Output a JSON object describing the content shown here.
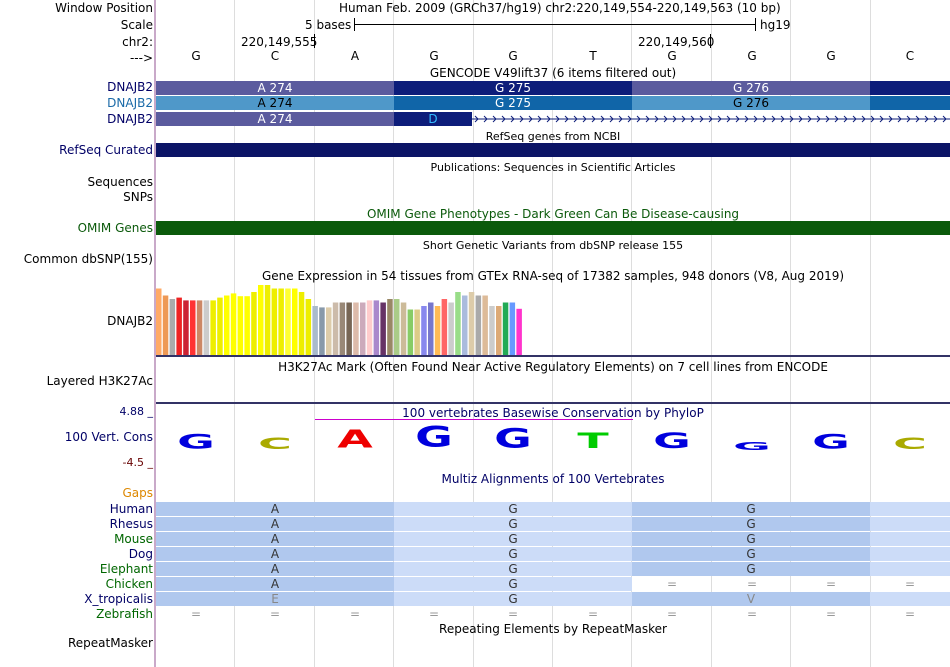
{
  "labels": {
    "window_position": "Window Position",
    "scale": "Scale",
    "chr": "chr2:",
    "strand": "--->",
    "dnajb2_1": "DNAJB2",
    "dnajb2_2": "DNAJB2",
    "dnajb2_3": "DNAJB2",
    "refseq": "RefSeq Curated",
    "sequences": "Sequences",
    "snps": "SNPs",
    "omim": "OMIM Genes",
    "common_dbsnp": "Common dbSNP(155)",
    "gtex_gene": "DNAJB2",
    "h3k27ac": "Layered H3K27Ac",
    "cons_max": "4.88 _",
    "cons_label": "100 Vert. Cons",
    "cons_min": "-4.5 _",
    "gaps": "Gaps",
    "repeatmasker": "RepeatMasker"
  },
  "header": {
    "window_position": "Human Feb. 2009 (GRCh37/hg19)   chr2:220,149,554-220,149,563 (10 bp)",
    "scale_text": "5 bases",
    "assembly": "hg19",
    "pos1": "220,149,555",
    "pos2": "220,149,560"
  },
  "bases": [
    "G",
    "C",
    "A",
    "G",
    "G",
    "T",
    "G",
    "G",
    "G",
    "C"
  ],
  "tracks": {
    "gencode_title": "GENCODE V49lift37 (6 items filtered out)",
    "row1": [
      "A 274",
      "G 275",
      "G 276"
    ],
    "row2": [
      "A 274",
      "G 275",
      "G 276"
    ],
    "row3": [
      "A 274",
      "D"
    ],
    "refseq_title": "RefSeq genes from NCBI",
    "publications_title": "Publications: Sequences in Scientific Articles",
    "omim_title": "OMIM Gene Phenotypes - Dark Green Can Be Disease-causing",
    "dbsnp_title": "Short Genetic Variants from dbSNP release 155",
    "gtex_title": "Gene Expression in 54 tissues from GTEx RNA-seq of 17382 samples, 948 donors (V8, Aug 2019)",
    "h3k27ac_title": "H3K27Ac Mark (Often Found Near Active Regulatory Elements) on 7 cell lines from ENCODE",
    "cons_title": "100 vertebrates Basewise Conservation by PhyloP",
    "multiz_title": "Multiz Alignments of 100 Vertebrates",
    "repeat_title": "Repeating Elements by RepeatMasker"
  },
  "gtex_levels": [
    0.95,
    0.85,
    0.8,
    0.82,
    0.78,
    0.78,
    0.78,
    0.78,
    0.78,
    0.82,
    0.85,
    0.88,
    0.84,
    0.84,
    0.9,
    1.0,
    1.0,
    0.95,
    0.95,
    0.95,
    0.95,
    0.9,
    0.8,
    0.7,
    0.68,
    0.68,
    0.75,
    0.75,
    0.75,
    0.75,
    0.75,
    0.78,
    0.78,
    0.75,
    0.8,
    0.8,
    0.75,
    0.65,
    0.65,
    0.7,
    0.75,
    0.7,
    0.8,
    0.75,
    0.9,
    0.85,
    0.9,
    0.85,
    0.85,
    0.7,
    0.7,
    0.75,
    0.75,
    0.66
  ],
  "gtex_colors": [
    "#ffaa66",
    "#ee9955",
    "#aaaaaa",
    "#ee2222",
    "#cc2233",
    "#ff3333",
    "#cc8866",
    "#cccccc",
    "#eeee00",
    "#eeee00",
    "#ffff00",
    "#ffff00",
    "#ffff00",
    "#ffff00",
    "#eeee00",
    "#ffff00",
    "#eeee00",
    "#eeee00",
    "#eeee00",
    "#ffff33",
    "#ffff00",
    "#eeee00",
    "#eeee00",
    "#aabbcc",
    "#8899aa",
    "#ddccaa",
    "#ccbbaa",
    "#998877",
    "#776655",
    "#ddbbaa",
    "#ccaabb",
    "#ffcccc",
    "#aa88cc",
    "#663366",
    "#998866",
    "#aacc88",
    "#ccbb99",
    "#88cc66",
    "#ddcc88",
    "#8888ee",
    "#7777cc",
    "#ffbb55",
    "#ff6666",
    "#cccccc",
    "#99dd88",
    "#aabbdd",
    "#ddccaa",
    "#aaaaaa",
    "#ddbb99",
    "#cccccc",
    "#ddaa77",
    "#22aa55",
    "#6699ff",
    "#ff33cc"
  ],
  "cons_colors": {
    "A": "#ee0000",
    "C": "#aaaa00",
    "G": "#0000dd",
    "T": "#00cc00"
  },
  "cons_heights": [
    0.55,
    0.45,
    0.7,
    0.8,
    0.75,
    0.6,
    0.6,
    0.3,
    0.55,
    0.45
  ],
  "species": [
    "Human",
    "Rhesus",
    "Mouse",
    "Dog",
    "Elephant",
    "Chicken",
    "X_tropicalis",
    "Zebrafish"
  ],
  "species_colors": [
    "#000066",
    "#000066",
    "#006600",
    "#000066",
    "#006600",
    "#006600",
    "#000066",
    "#006600"
  ],
  "alignment": [
    [
      "A",
      "G",
      "G"
    ],
    [
      "A",
      "G",
      "G"
    ],
    [
      "A",
      "G",
      "G"
    ],
    [
      "A",
      "G",
      "G"
    ],
    [
      "A",
      "G",
      "G"
    ],
    [
      "A",
      "G",
      "=",
      "=",
      "=",
      "="
    ],
    [
      "E",
      "G",
      "V"
    ],
    [
      "=",
      "=",
      "=",
      "=",
      "=",
      "=",
      "=",
      "=",
      "=",
      "="
    ]
  ],
  "colors": {
    "gencode_dark": "#5b5b9e",
    "gencode_navy": "#0d1d7a",
    "gencode_light": "#4f98c9",
    "gencode_blue2": "#1065a8",
    "refseq": "#0b1466",
    "omim": "#0b5a0b",
    "align_dark": "#b0c8ee",
    "align_light": "#ccdcf8"
  }
}
